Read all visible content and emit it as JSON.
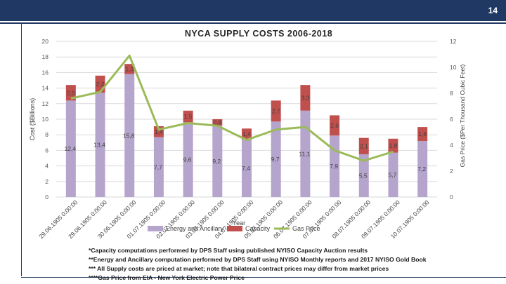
{
  "slide": {
    "number": "14"
  },
  "colors": {
    "header": "#1f3864",
    "energy": "#b5a4cc",
    "capacity": "#c0504d",
    "gas": "#9bbb59",
    "grid": "#d9d9d9",
    "axis_text": "#595959"
  },
  "chart_data": {
    "type": "bar",
    "stacked": true,
    "title": "NYCA SUPPLY COSTS 2006-2018",
    "xlabel": "Year",
    "ylabel": "Cost ($Billions)",
    "y2label": "Gas Price ($Per Thousand Cubic Feet)",
    "ylim": [
      0,
      20
    ],
    "y2lim": [
      0,
      12
    ],
    "yticks": [
      0,
      2,
      4,
      6,
      8,
      10,
      12,
      14,
      16,
      18,
      20
    ],
    "y2ticks": [
      0,
      2,
      4,
      6,
      8,
      10,
      12
    ],
    "grid": true,
    "legend_position": "bottom",
    "categories": [
      "29.06.1905 0:00:00",
      "29.06.1905 0:00:00",
      "30.06.1905 0:00:00",
      "01.07.1905 0:00:00",
      "02.07.1905 0:00:00",
      "03.07.1905 0:00:00",
      "04.07.1905 0:00:00",
      "05.07.1905 0:00:00",
      "06.07.1905 0:00:00",
      "07.07.1905 0:00:00",
      "08.07.1905 0:00:00",
      "09.07.1905 0:00:00",
      "10.07.1905 0:00:00"
    ],
    "series": [
      {
        "name": "Energy and Ancillary",
        "axis": "left",
        "values": [
          12.4,
          13.4,
          15.8,
          7.7,
          9.6,
          9.2,
          7.4,
          9.7,
          11.1,
          7.9,
          5.5,
          5.7,
          7.2
        ],
        "labels": [
          "12,4",
          "13,4",
          "15,8",
          "7,7",
          "9,6",
          "9,2",
          "7,4",
          "9,7",
          "11,1",
          "7,9",
          "5,5",
          "5,7",
          "7,2"
        ]
      },
      {
        "name": "Capacity",
        "axis": "left",
        "values": [
          2.0,
          2.2,
          1.3,
          1.4,
          1.5,
          0.8,
          1.4,
          2.7,
          3.3,
          2.6,
          2.1,
          1.8,
          1.8
        ],
        "labels": [
          "2,0",
          "2,2",
          "1,3",
          "1,4",
          "1,5",
          "0,8",
          "1,4",
          "2,7",
          "3,3",
          "2,6",
          "2,1",
          "1,8",
          "1,8"
        ]
      },
      {
        "name": "Gas Price",
        "axis": "right",
        "type": "line",
        "values": [
          7.6,
          8.1,
          10.9,
          5.2,
          5.7,
          5.5,
          4.4,
          5.2,
          5.4,
          3.6,
          2.8,
          3.5,
          null
        ]
      }
    ]
  },
  "footnotes": [
    "*Capacity computations performed by DPS Staff using published NYISO Capacity Auction results",
    "**Energy and Ancillary computation performed by DPS Staff using NYISO Monthly reports and 2017 NYISO Gold Book",
    "*** All Supply costs are priced at market; note that bilateral contract prices may differ from market prices",
    "****Gas Price from EIA - New York Electric Power Price"
  ]
}
